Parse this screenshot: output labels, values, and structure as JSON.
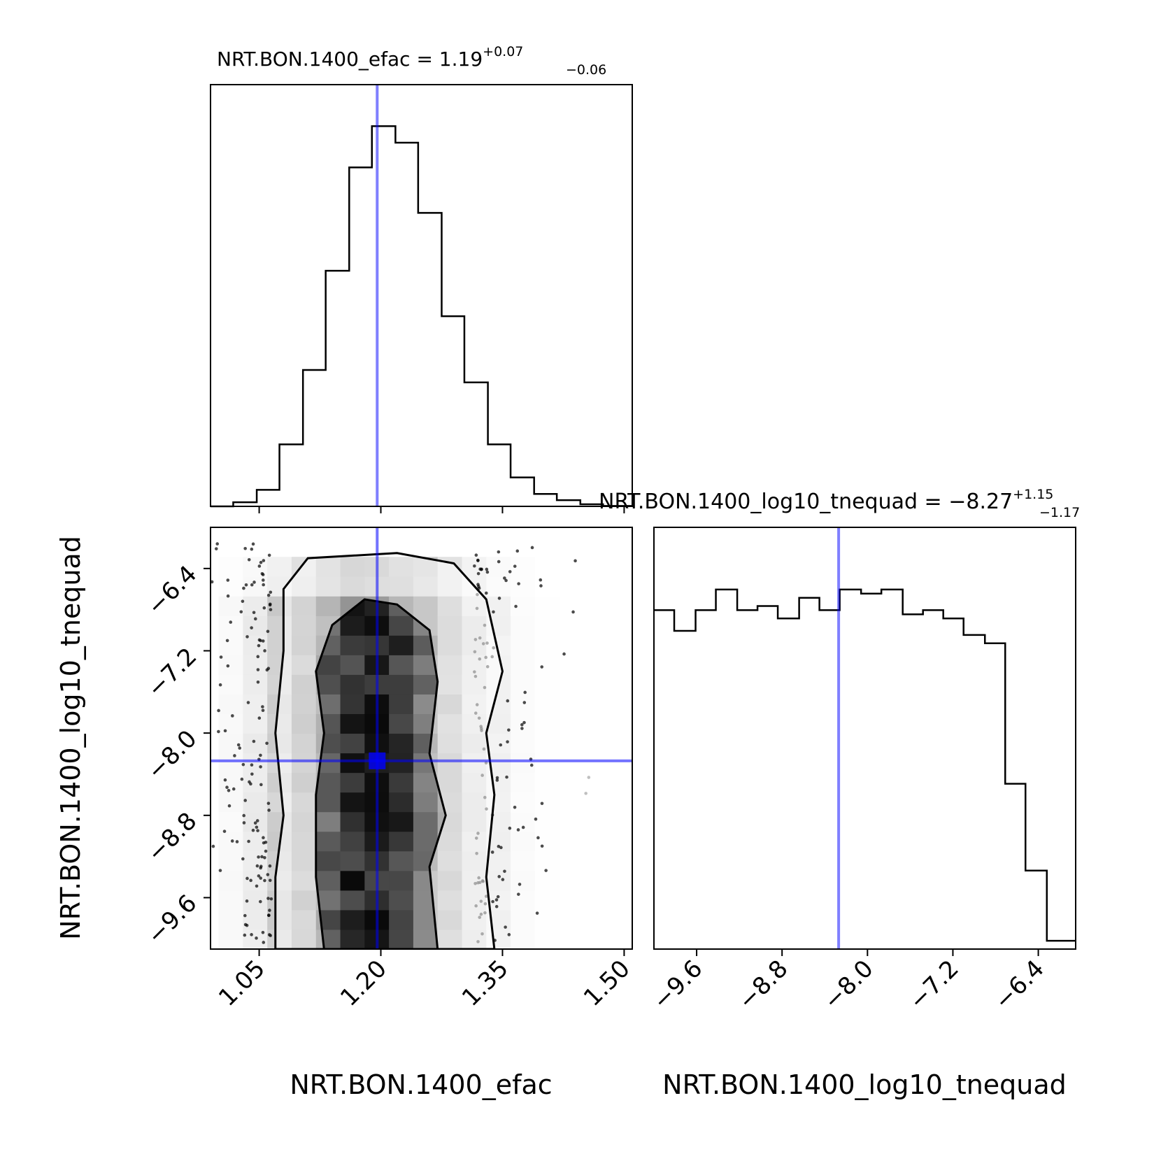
{
  "figure": {
    "titles": {
      "efac": {
        "main": "NRT.BON.1400_efac = 1.19",
        "sup": "+0.07",
        "sub": "−0.06"
      },
      "tnequad": {
        "main": "NRT.BON.1400_log10_tnequad = −8.27",
        "sup": "+1.15",
        "sub": "−1.17"
      }
    },
    "xlabels": {
      "efac": "NRT.BON.1400_efac",
      "tnequad": "NRT.BON.1400_log10_tnequad"
    },
    "ylabel": "NRT.BON.1400_log10_tnequad",
    "colors": {
      "truth": "#0000ff",
      "hist": "#000000"
    }
  },
  "chart_data": [
    {
      "type": "bar",
      "panel": "efac-histogram",
      "title": "NRT.BON.1400_efac = 1.19 (+0.07 / −0.06)",
      "bin_edges": [
        0.99,
        1.0475,
        1.105,
        1.1625,
        1.22,
        1.2775,
        1.335,
        1.3925,
        1.45,
        1.5075
      ],
      "x_range": [
        0.99,
        1.51
      ],
      "xticks": [
        "1.05",
        "1.20",
        "1.35",
        "1.50"
      ],
      "xtick_values": [
        1.05,
        1.2,
        1.35,
        1.5
      ],
      "steps": [
        [
          0.99,
          0
        ],
        [
          1.018,
          1
        ],
        [
          1.047,
          4
        ],
        [
          1.075,
          15
        ],
        [
          1.104,
          33
        ],
        [
          1.132,
          57
        ],
        [
          1.161,
          82
        ],
        [
          1.189,
          92
        ],
        [
          1.218,
          88
        ],
        [
          1.246,
          71
        ],
        [
          1.275,
          46
        ],
        [
          1.303,
          30
        ],
        [
          1.332,
          15
        ],
        [
          1.36,
          7
        ],
        [
          1.389,
          3
        ],
        [
          1.417,
          1.5
        ],
        [
          1.446,
          0.5
        ],
        [
          1.474,
          0.1
        ]
      ],
      "ymax": 100,
      "truth_x": 1.1955
    },
    {
      "type": "scatter",
      "panel": "2d-posterior",
      "xlabel": "NRT.BON.1400_efac",
      "ylabel": "NRT.BON.1400_log10_tnequad",
      "x_range": [
        0.99,
        1.51
      ],
      "y_range": [
        -10.1,
        -6.0
      ],
      "xticks": [
        "1.05",
        "1.20",
        "1.35",
        "1.50"
      ],
      "xtick_values": [
        1.05,
        1.2,
        1.35,
        1.5
      ],
      "yticks": [
        "−6.4",
        "−7.2",
        "−8.0",
        "−8.8",
        "−9.6"
      ],
      "ytick_values": [
        -6.4,
        -7.2,
        -8.0,
        -8.8,
        -9.6
      ],
      "density_center_x": 1.19,
      "density_sigma_x": 0.065,
      "contour_outer": [
        [
          1.08,
          -6.6
        ],
        [
          1.11,
          -6.3
        ],
        [
          1.22,
          -6.25
        ],
        [
          1.29,
          -6.35
        ],
        [
          1.33,
          -6.7
        ],
        [
          1.35,
          -7.4
        ],
        [
          1.33,
          -8.0
        ],
        [
          1.34,
          -8.6
        ],
        [
          1.33,
          -9.4
        ],
        [
          1.34,
          -10.1
        ],
        [
          1.07,
          -10.1
        ],
        [
          1.07,
          -9.4
        ],
        [
          1.08,
          -8.8
        ],
        [
          1.07,
          -8.0
        ],
        [
          1.08,
          -7.2
        ]
      ],
      "contour_inner": [
        [
          1.14,
          -6.95
        ],
        [
          1.18,
          -6.7
        ],
        [
          1.22,
          -6.75
        ],
        [
          1.26,
          -7.0
        ],
        [
          1.27,
          -7.5
        ],
        [
          1.26,
          -8.2
        ],
        [
          1.28,
          -8.8
        ],
        [
          1.26,
          -9.3
        ],
        [
          1.27,
          -10.1
        ],
        [
          1.13,
          -10.1
        ],
        [
          1.12,
          -9.4
        ],
        [
          1.12,
          -8.6
        ],
        [
          1.13,
          -8.0
        ],
        [
          1.12,
          -7.4
        ]
      ],
      "truth": {
        "x": 1.1955,
        "y": -8.27
      }
    },
    {
      "type": "bar",
      "panel": "log10-tnequad-histogram",
      "title": "NRT.BON.1400_log10_tnequad = −8.27 (+1.15 / −1.17)",
      "x_range": [
        -10.0,
        -6.05
      ],
      "xticks": [
        "−9.6",
        "−8.8",
        "−8.0",
        "−7.2",
        "−6.4"
      ],
      "xtick_values": [
        -9.6,
        -8.8,
        -8.0,
        -7.2,
        -6.4
      ],
      "steps": [
        [
          -10.0,
          82
        ],
        [
          -9.81,
          77
        ],
        [
          -9.61,
          82
        ],
        [
          -9.42,
          87
        ],
        [
          -9.22,
          82
        ],
        [
          -9.03,
          83
        ],
        [
          -8.84,
          80
        ],
        [
          -8.64,
          85
        ],
        [
          -8.45,
          82
        ],
        [
          -8.26,
          87
        ],
        [
          -8.06,
          86
        ],
        [
          -7.87,
          87
        ],
        [
          -7.67,
          81
        ],
        [
          -7.48,
          82
        ],
        [
          -7.29,
          80
        ],
        [
          -7.1,
          76
        ],
        [
          -6.9,
          74
        ],
        [
          -6.71,
          40
        ],
        [
          -6.52,
          19
        ],
        [
          -6.32,
          2
        ]
      ],
      "ymax": 100,
      "truth_x": -8.27
    }
  ]
}
